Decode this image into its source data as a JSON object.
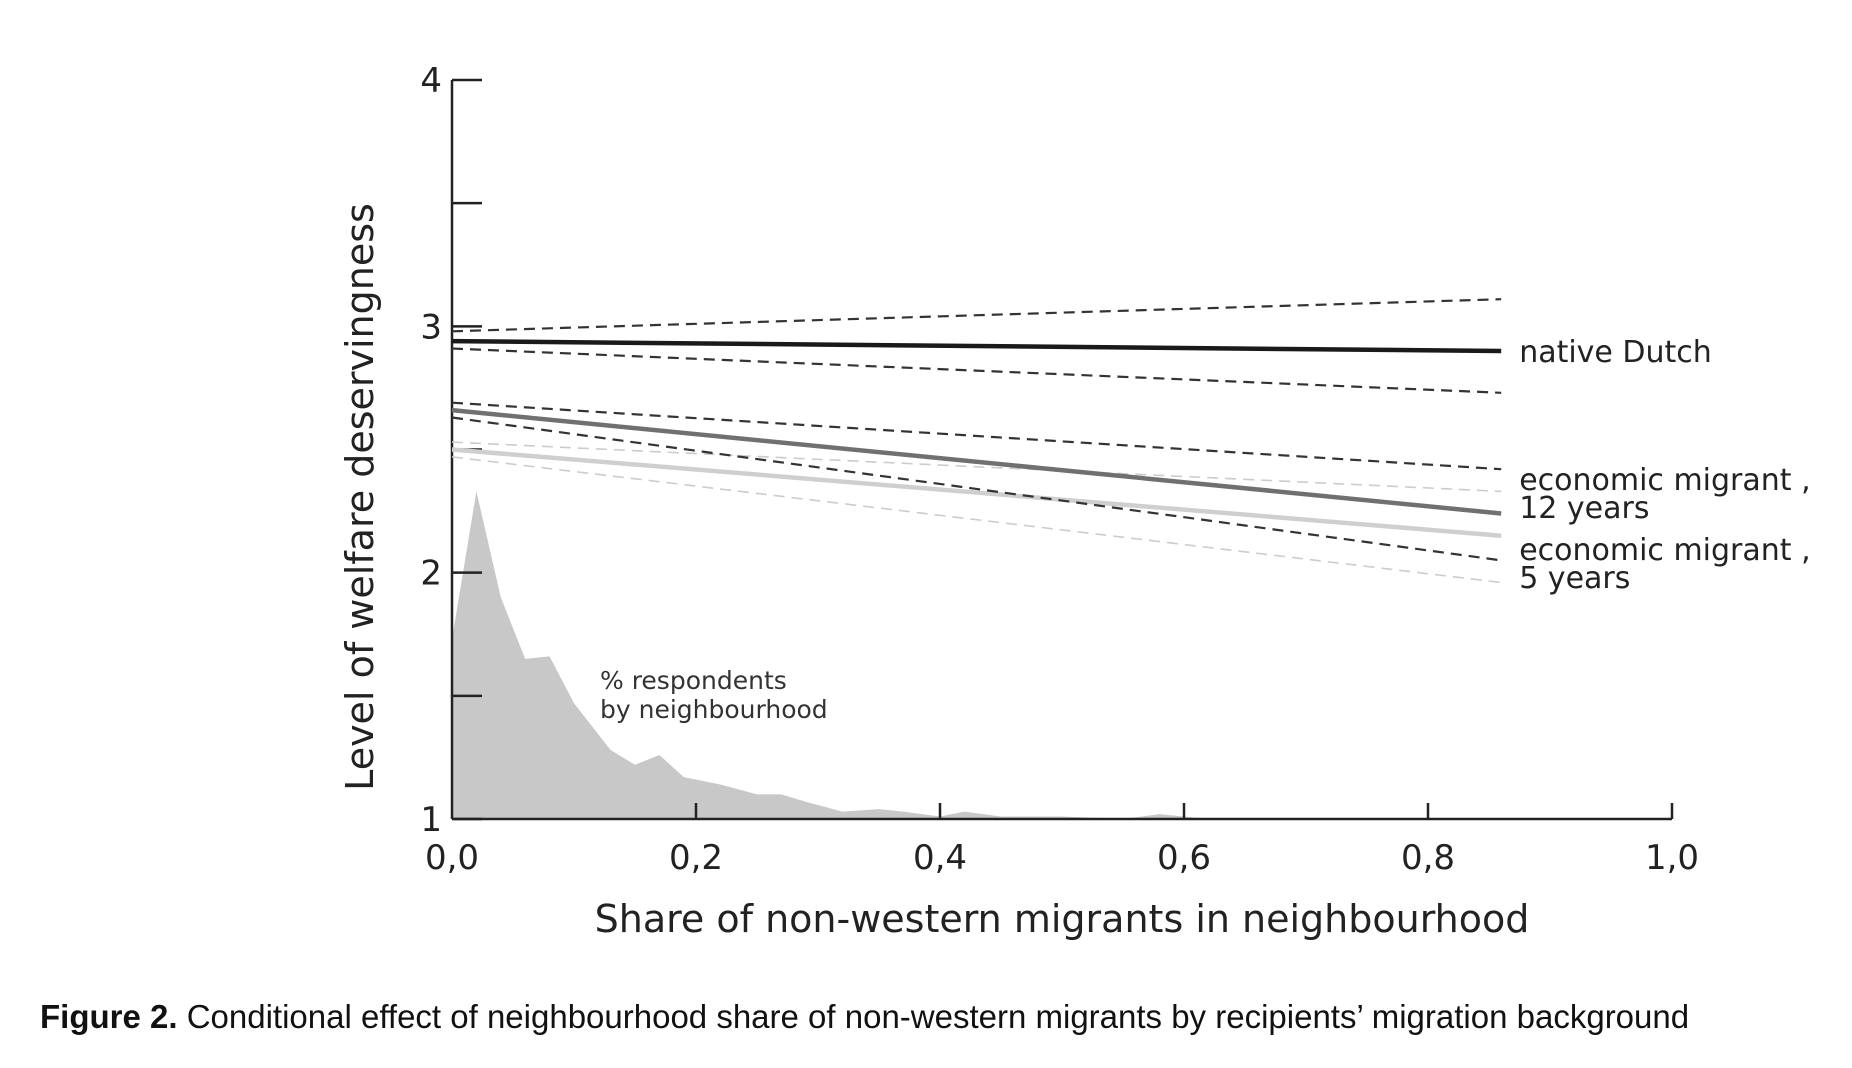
{
  "caption": {
    "label": "Figure 2.",
    "text": "Conditional effect of neighbourhood share of non-western migrants by recipients’ migration background"
  },
  "chart_data": {
    "type": "line",
    "title": "",
    "xlabel": "Share of non-western migrants in neighbourhood",
    "ylabel": "Level of welfare deservingness",
    "xlim": [
      0,
      1
    ],
    "ylim": [
      1,
      4
    ],
    "x_ticks": [
      {
        "value": 0.0,
        "label": "0,0"
      },
      {
        "value": 0.2,
        "label": "0,2"
      },
      {
        "value": 0.4,
        "label": "0,4"
      },
      {
        "value": 0.6,
        "label": "0,6"
      },
      {
        "value": 0.8,
        "label": "0,8"
      },
      {
        "value": 1.0,
        "label": "1,0"
      }
    ],
    "y_ticks": [
      {
        "value": 1,
        "label": "1"
      },
      {
        "value": 1.5,
        "label": ""
      },
      {
        "value": 2,
        "label": "2"
      },
      {
        "value": 2.5,
        "label": ""
      },
      {
        "value": 3,
        "label": "3"
      },
      {
        "value": 3.5,
        "label": ""
      },
      {
        "value": 4,
        "label": "4"
      }
    ],
    "grid": false,
    "series": [
      {
        "name": "native Dutch",
        "label_lines": [
          "native Dutch"
        ],
        "color": "#1a1a1a",
        "ci_color": "#333333",
        "x": [
          0,
          0.86
        ],
        "y": [
          2.94,
          2.9
        ],
        "ci_lower": [
          2.91,
          2.73
        ],
        "ci_upper": [
          2.98,
          3.11
        ]
      },
      {
        "name": "economic migrant , 12 years",
        "label_lines": [
          "economic migrant ,",
          "12 years"
        ],
        "color": "#707070",
        "ci_color": "#333333",
        "x": [
          0,
          0.86
        ],
        "y": [
          2.66,
          2.24
        ],
        "ci_lower": [
          2.63,
          2.05
        ],
        "ci_upper": [
          2.69,
          2.42
        ]
      },
      {
        "name": "economic migrant , 5 years",
        "label_lines": [
          "economic migrant ,",
          "5 years"
        ],
        "color": "#cfcfcf",
        "ci_color": "#cccccc",
        "x": [
          0,
          0.86
        ],
        "y": [
          2.5,
          2.15
        ],
        "ci_lower": [
          2.47,
          1.96
        ],
        "ci_upper": [
          2.53,
          2.33
        ]
      }
    ],
    "histogram": {
      "label_lines": [
        "% respondents",
        "by neighbourhood"
      ],
      "color": "#c8c8c8",
      "x": [
        0,
        0.02,
        0.04,
        0.06,
        0.08,
        0.1,
        0.13,
        0.15,
        0.17,
        0.19,
        0.22,
        0.25,
        0.27,
        0.29,
        0.32,
        0.35,
        0.37,
        0.4,
        0.42,
        0.45,
        0.5,
        0.55,
        0.58,
        0.62,
        0.7,
        0.8,
        0.86
      ],
      "y": [
        1.73,
        2.33,
        1.9,
        1.65,
        1.66,
        1.47,
        1.28,
        1.22,
        1.26,
        1.17,
        1.14,
        1.1,
        1.1,
        1.07,
        1.03,
        1.04,
        1.03,
        1.01,
        1.03,
        1.01,
        1.01,
        1.0,
        1.02,
        1.0,
        1.0,
        1.0,
        1.0
      ]
    }
  }
}
